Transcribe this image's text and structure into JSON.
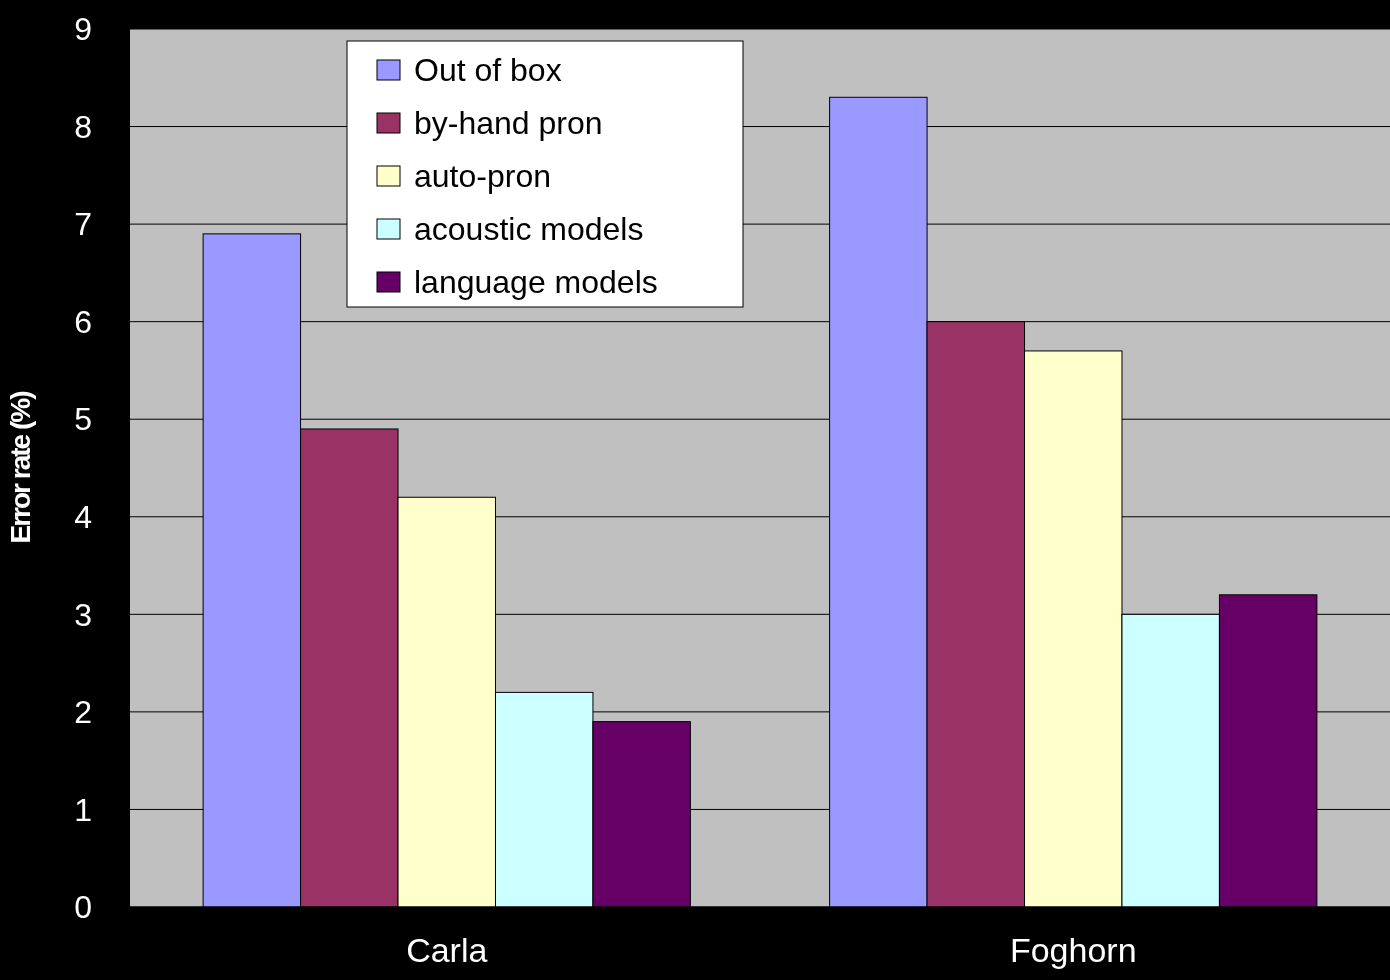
{
  "chart_data": {
    "type": "bar",
    "ylabel": "Error rate (%)",
    "categories": [
      "Carla",
      "Foghorn"
    ],
    "series": [
      {
        "name": "Out of box",
        "color": "#9999ff",
        "values": [
          6.9,
          8.3
        ]
      },
      {
        "name": "by-hand pron",
        "color": "#993366",
        "values": [
          4.9,
          6.0
        ]
      },
      {
        "name": "auto-pron",
        "color": "#ffffcc",
        "values": [
          4.2,
          5.7
        ]
      },
      {
        "name": "acoustic models",
        "color": "#ccffff",
        "values": [
          2.2,
          3.0
        ]
      },
      {
        "name": "language models",
        "color": "#660066",
        "values": [
          1.9,
          3.2
        ]
      }
    ],
    "ylim": [
      0,
      9
    ],
    "yticks": [
      0,
      1,
      2,
      3,
      4,
      5,
      6,
      7,
      8,
      9
    ],
    "grid": "y",
    "legend": "top left"
  }
}
